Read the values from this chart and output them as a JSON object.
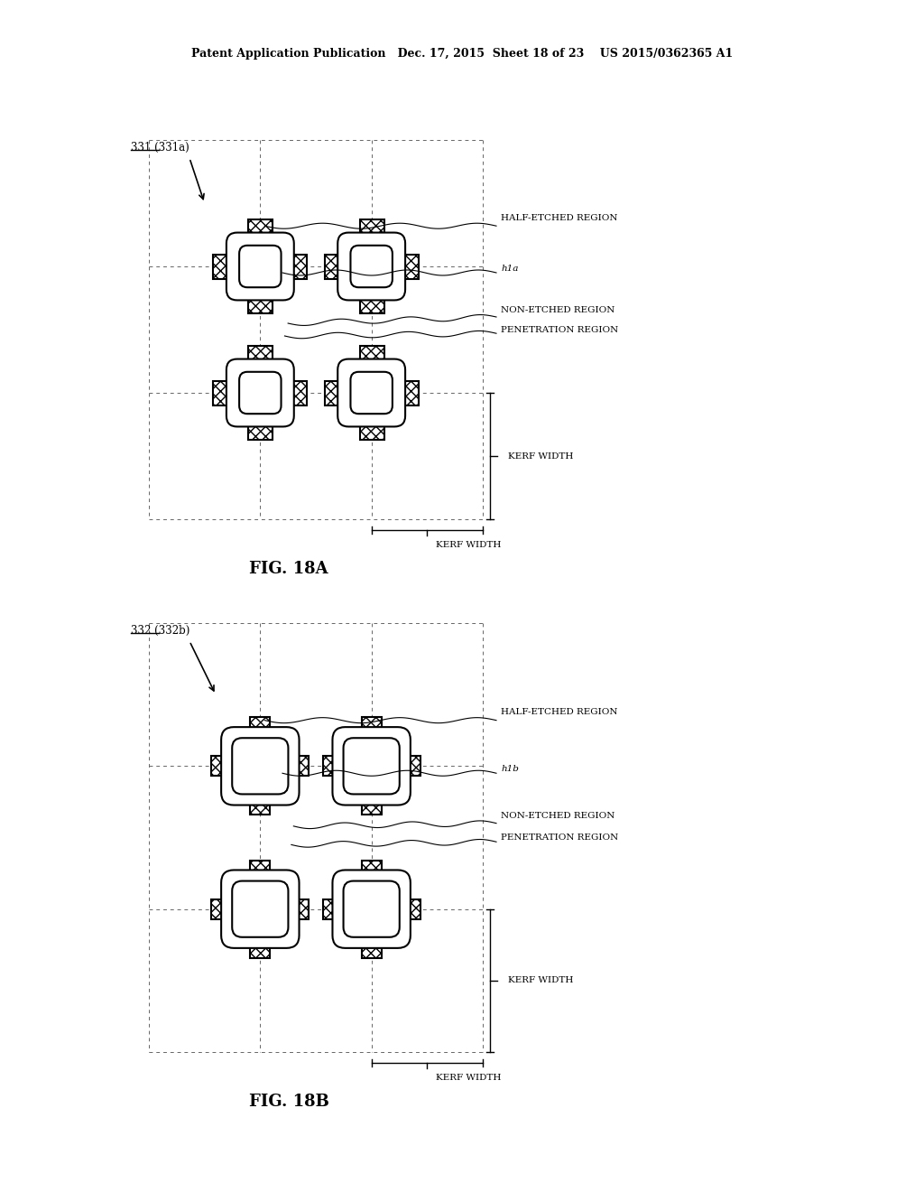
{
  "title": "Patent Application Publication   Dec. 17, 2015  Sheet 18 of 23    US 2015/0362365 A1",
  "fig_a_label": "FIG. 18A",
  "fig_b_label": "FIG. 18B",
  "ref_a": "331 (331a)",
  "ref_b": "332 (332b)",
  "label_half_etched": "HALF-ETCHED REGION",
  "label_h1a": "h1a",
  "label_h1b": "h1b",
  "label_non_etched": "NON-ETCHED REGION",
  "label_penetration": "PENETRATION REGION",
  "label_kerf1": "KERF WIDTH",
  "label_kerf2": "KERF WIDTH",
  "bg_color": "#ffffff",
  "line_color": "#000000",
  "hatch_color": "#000000",
  "grid_color": "#aaaaaa",
  "dashed_color": "#555555"
}
